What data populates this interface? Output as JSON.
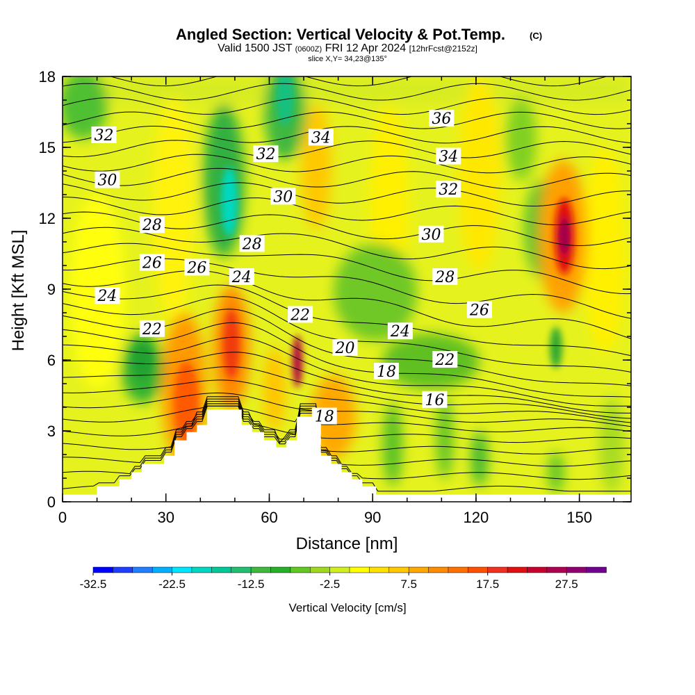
{
  "chart_data": {
    "type": "heatmap",
    "title": "Angled Section: Vertical Velocity & Pot.Temp.",
    "title_units": "(C)",
    "subtitle_valid": "Valid 1500 JST",
    "subtitle_utc": "(0600Z)",
    "subtitle_date": "FRI 12 Apr 2024",
    "subtitle_fcst": "[12hrFcst@2152z]",
    "slice_label": "slice X,Y= 34,23@135°",
    "xlabel": "Distance [nm]",
    "ylabel": "Height [Kft MSL]",
    "xlim": [
      0,
      165
    ],
    "ylim": [
      0,
      18
    ],
    "x_ticks": [
      "0",
      "30",
      "60",
      "90",
      "120",
      "150"
    ],
    "y_ticks": [
      "0",
      "3",
      "6",
      "9",
      "12",
      "15",
      "18"
    ],
    "colorbar": {
      "label": "Vertical Velocity [cm/s]",
      "tick_labels": [
        "-32.5",
        "-22.5",
        "-12.5",
        "-2.5",
        "7.5",
        "17.5",
        "27.5"
      ],
      "colors": [
        "#0000ff",
        "#1f3fff",
        "#1f7fff",
        "#00b0ff",
        "#00e5ff",
        "#00d6c0",
        "#00c896",
        "#20c070",
        "#40b840",
        "#28b028",
        "#60c820",
        "#a0d820",
        "#d0ee20",
        "#ffff00",
        "#ffe000",
        "#ffc800",
        "#ffa800",
        "#ff8c00",
        "#ff7000",
        "#ff5000",
        "#f03020",
        "#e01010",
        "#c80030",
        "#b00050",
        "#900070",
        "#700090"
      ]
    },
    "contour_labels": [
      {
        "text": "32",
        "x": 12,
        "y": 15.5
      },
      {
        "text": "30",
        "x": 13,
        "y": 13.6
      },
      {
        "text": "28",
        "x": 26,
        "y": 11.7
      },
      {
        "text": "26",
        "x": 26,
        "y": 10.1
      },
      {
        "text": "24",
        "x": 13,
        "y": 8.7
      },
      {
        "text": "22",
        "x": 26,
        "y": 7.3
      },
      {
        "text": "26",
        "x": 39,
        "y": 9.9
      },
      {
        "text": "24",
        "x": 52,
        "y": 9.5
      },
      {
        "text": "28",
        "x": 55,
        "y": 10.9
      },
      {
        "text": "30",
        "x": 64,
        "y": 12.9
      },
      {
        "text": "32",
        "x": 59,
        "y": 14.7
      },
      {
        "text": "34",
        "x": 75,
        "y": 15.4
      },
      {
        "text": "22",
        "x": 69,
        "y": 7.9
      },
      {
        "text": "20",
        "x": 82,
        "y": 6.5
      },
      {
        "text": "18",
        "x": 94,
        "y": 5.5
      },
      {
        "text": "18",
        "x": 76,
        "y": 3.6
      },
      {
        "text": "24",
        "x": 98,
        "y": 7.2
      },
      {
        "text": "16",
        "x": 108,
        "y": 4.3
      },
      {
        "text": "22",
        "x": 111,
        "y": 6.0
      },
      {
        "text": "26",
        "x": 121,
        "y": 8.1
      },
      {
        "text": "28",
        "x": 111,
        "y": 9.5
      },
      {
        "text": "30",
        "x": 107,
        "y": 11.3
      },
      {
        "text": "32",
        "x": 112,
        "y": 13.2
      },
      {
        "text": "34",
        "x": 112,
        "y": 14.6
      },
      {
        "text": "36",
        "x": 110,
        "y": 16.2
      }
    ],
    "terrain_profile": [
      {
        "x": 0,
        "y": 0.3
      },
      {
        "x": 10,
        "y": 0.3
      },
      {
        "x": 10,
        "y": 0.65
      },
      {
        "x": 16.5,
        "y": 0.65
      },
      {
        "x": 16.5,
        "y": 0.95
      },
      {
        "x": 20,
        "y": 0.95
      },
      {
        "x": 20,
        "y": 1.25
      },
      {
        "x": 23,
        "y": 1.25
      },
      {
        "x": 23,
        "y": 1.6
      },
      {
        "x": 29.5,
        "y": 1.6
      },
      {
        "x": 29.5,
        "y": 1.95
      },
      {
        "x": 32.5,
        "y": 1.95
      },
      {
        "x": 32.5,
        "y": 2.6
      },
      {
        "x": 36,
        "y": 2.6
      },
      {
        "x": 36,
        "y": 2.95
      },
      {
        "x": 39,
        "y": 2.95
      },
      {
        "x": 39,
        "y": 3.25
      },
      {
        "x": 42,
        "y": 3.25
      },
      {
        "x": 42,
        "y": 3.9
      },
      {
        "x": 52,
        "y": 3.9
      },
      {
        "x": 52,
        "y": 3.25
      },
      {
        "x": 55,
        "y": 3.25
      },
      {
        "x": 55,
        "y": 2.95
      },
      {
        "x": 58.5,
        "y": 2.95
      },
      {
        "x": 58.5,
        "y": 2.6
      },
      {
        "x": 62,
        "y": 2.6
      },
      {
        "x": 62,
        "y": 2.3
      },
      {
        "x": 65,
        "y": 2.3
      },
      {
        "x": 65,
        "y": 2.6
      },
      {
        "x": 68,
        "y": 2.6
      },
      {
        "x": 68,
        "y": 3.6
      },
      {
        "x": 75,
        "y": 3.6
      },
      {
        "x": 75,
        "y": 2.95
      },
      {
        "x": 75,
        "y": 1.95
      },
      {
        "x": 78,
        "y": 1.95
      },
      {
        "x": 78,
        "y": 1.6
      },
      {
        "x": 81,
        "y": 1.6
      },
      {
        "x": 81,
        "y": 1.25
      },
      {
        "x": 84,
        "y": 1.25
      },
      {
        "x": 84,
        "y": 0.95
      },
      {
        "x": 87,
        "y": 0.95
      },
      {
        "x": 87,
        "y": 0.65
      },
      {
        "x": 91,
        "y": 0.65
      },
      {
        "x": 91,
        "y": 0.3
      },
      {
        "x": 165,
        "y": 0.3
      }
    ]
  }
}
